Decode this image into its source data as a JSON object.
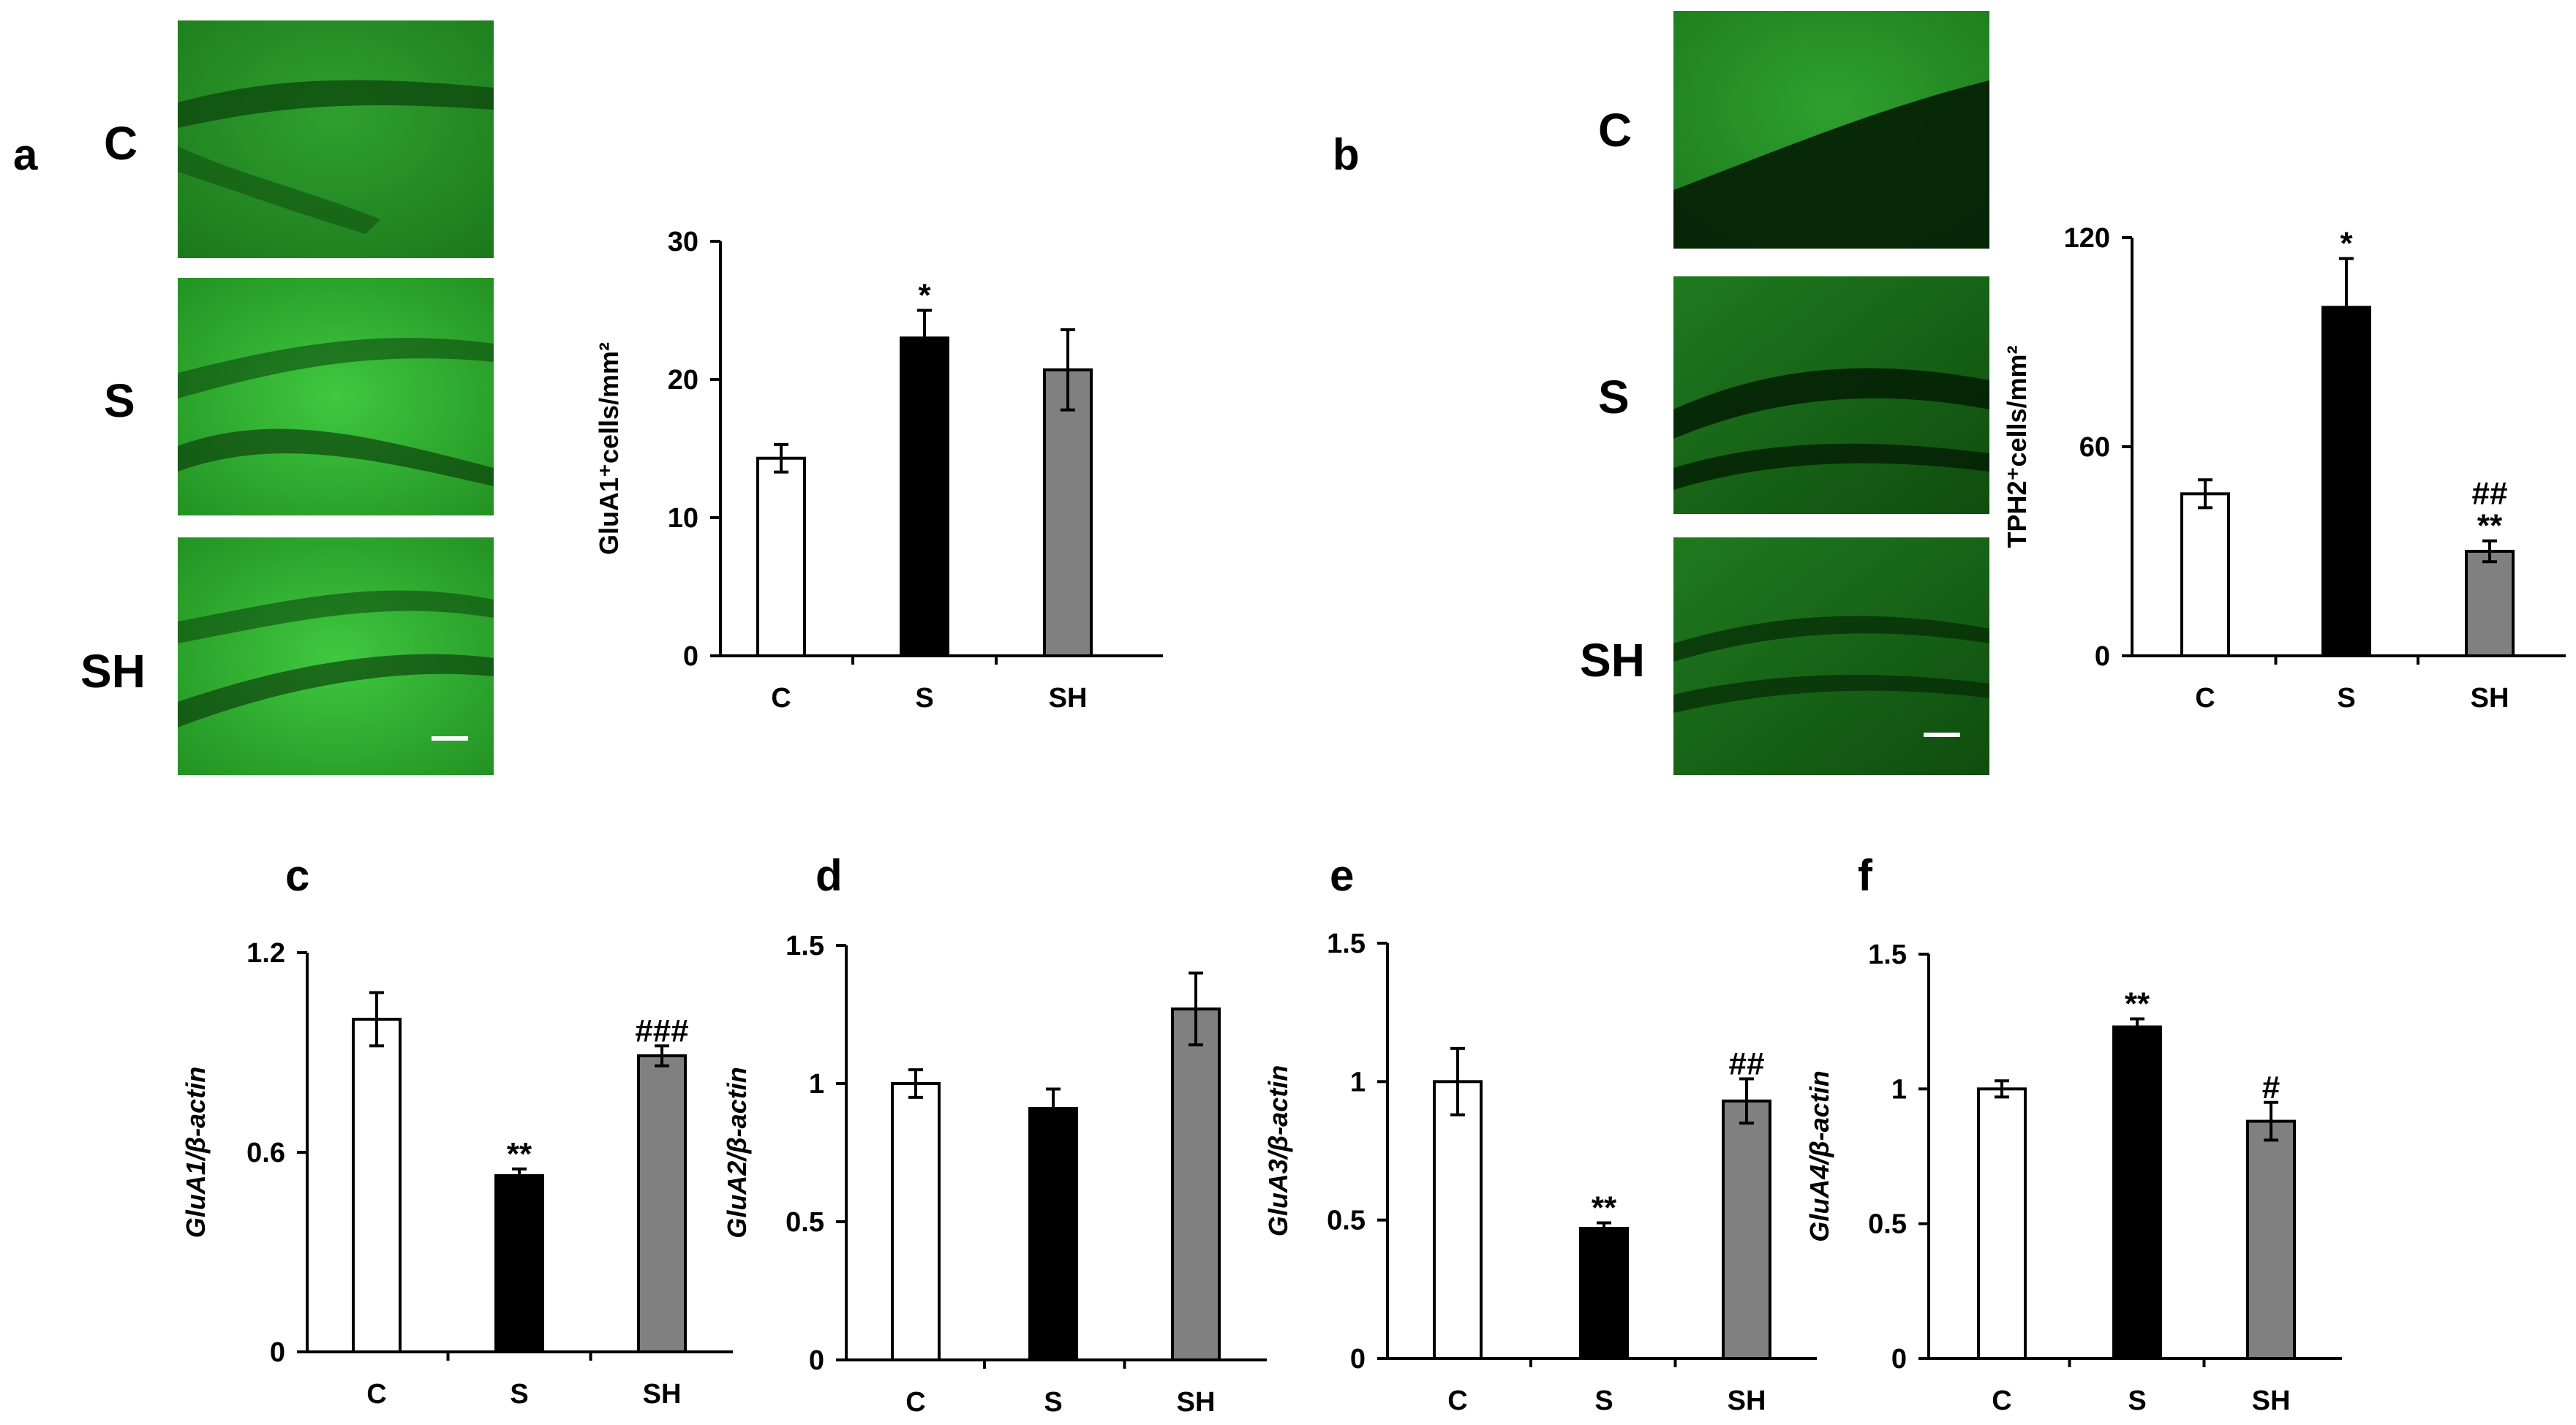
{
  "figure": {
    "micrographs": [
      {
        "panel": "a",
        "labels": [
          "C",
          "S",
          "SH"
        ]
      },
      {
        "panel": "b",
        "labels": [
          "C",
          "S",
          "SH"
        ]
      }
    ],
    "colors": {
      "control": "#ffffff",
      "stress": "#000000",
      "stress_treated": "#808080",
      "micrograph_bright": "#3fc93f",
      "micrograph_dark": "#0b3a0b"
    }
  },
  "chart_data": [
    {
      "panel": "a",
      "type": "bar",
      "categories": [
        "C",
        "S",
        "SH"
      ],
      "values": [
        14.3,
        23.0,
        20.7
      ],
      "errors": [
        1.0,
        2.0,
        2.9
      ],
      "annotations": [
        "",
        "*",
        ""
      ],
      "ylabel": "GluA1⁺cells/mm²",
      "ylim": [
        0,
        30
      ],
      "yticks": [
        "0",
        "10",
        "20",
        "30"
      ],
      "ytick_values": [
        0,
        10,
        20,
        30
      ],
      "ylabel_italic": false
    },
    {
      "panel": "b",
      "type": "bar",
      "categories": [
        "C",
        "S",
        "SH"
      ],
      "values": [
        46.5,
        100.0,
        30.0
      ],
      "errors": [
        4.0,
        14.0,
        3.0
      ],
      "annotations": [
        "",
        "*",
        "**"
      ],
      "annotations2": [
        "",
        "",
        "##"
      ],
      "ylabel": "TPH2⁺cells/mm²",
      "ylim": [
        0,
        120
      ],
      "yticks": [
        "0",
        "60",
        "120"
      ],
      "ytick_values": [
        0,
        60,
        120
      ],
      "ylabel_italic": false
    },
    {
      "panel": "c",
      "type": "bar",
      "categories": [
        "C",
        "S",
        "SH"
      ],
      "values": [
        1.0,
        0.53,
        0.89
      ],
      "errors": [
        0.08,
        0.02,
        0.03
      ],
      "annotations": [
        "",
        "**",
        "###"
      ],
      "ylabel": "GluA1/β-actin",
      "ylim": [
        0,
        1.2
      ],
      "yticks": [
        "0",
        "0.6",
        "1.2"
      ],
      "ytick_values": [
        0,
        0.6,
        1.2
      ],
      "ylabel_italic": true
    },
    {
      "panel": "d",
      "type": "bar",
      "categories": [
        "C",
        "S",
        "SH"
      ],
      "values": [
        1.0,
        0.91,
        1.27
      ],
      "errors": [
        0.05,
        0.07,
        0.13
      ],
      "annotations": [
        "",
        "",
        ""
      ],
      "ylabel": "GluA2/β-actin",
      "ylim": [
        0,
        1.5
      ],
      "yticks": [
        "0",
        "0.5",
        "1",
        "1.5"
      ],
      "ytick_values": [
        0,
        0.5,
        1,
        1.5
      ],
      "ylabel_italic": true
    },
    {
      "panel": "e",
      "type": "bar",
      "categories": [
        "C",
        "S",
        "SH"
      ],
      "values": [
        1.0,
        0.47,
        0.93
      ],
      "errors": [
        0.12,
        0.02,
        0.08
      ],
      "annotations": [
        "",
        "**",
        "##"
      ],
      "ylabel": "GluA3/β-actin",
      "ylim": [
        0,
        1.5
      ],
      "yticks": [
        "0",
        "0.5",
        "1",
        "1.5"
      ],
      "ytick_values": [
        0,
        0.5,
        1,
        1.5
      ],
      "ylabel_italic": true
    },
    {
      "panel": "f",
      "type": "bar",
      "categories": [
        "C",
        "S",
        "SH"
      ],
      "values": [
        1.0,
        1.23,
        0.88
      ],
      "errors": [
        0.03,
        0.03,
        0.07
      ],
      "annotations": [
        "",
        "**",
        "#"
      ],
      "ylabel": "GluA4/β-actin",
      "ylim": [
        0,
        1.5
      ],
      "yticks": [
        "0",
        "0.5",
        "1",
        "1.5"
      ],
      "ytick_values": [
        0,
        0.5,
        1,
        1.5
      ],
      "ylabel_italic": true
    }
  ]
}
